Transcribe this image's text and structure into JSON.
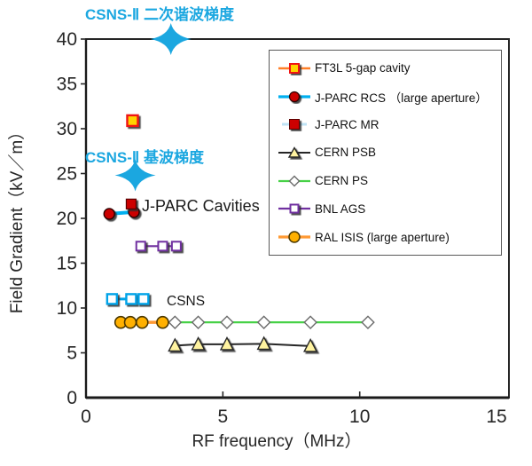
{
  "chart_data": {
    "type": "scatter",
    "title": "",
    "xlabel": "RF frequency（MHz）",
    "ylabel": "Field Gradient（kV／m）",
    "xlim": [
      0,
      15
    ],
    "ylim": [
      0,
      40
    ],
    "x_ticks": [
      0,
      5,
      10,
      15
    ],
    "y_ticks": [
      0,
      5,
      10,
      15,
      20,
      25,
      30,
      35,
      40
    ],
    "grid": false,
    "legend_position": "top-right-box",
    "series": [
      {
        "id": "ft3l",
        "name": "FT3L 5-gap cavity",
        "line_color": "#FF7F27",
        "line_width": 2.5,
        "marker": "square",
        "marker_size": 12,
        "marker_fill": "#FFD400",
        "marker_stroke": "#F01414",
        "marker_stroke_width": 2.4,
        "shadow": true,
        "in_legend": true,
        "points": [
          [
            1.7,
            30.9
          ]
        ]
      },
      {
        "id": "jparc-rcs",
        "name": "J-PARC RCS （large aperture）",
        "line_color": "#00B0F0",
        "line_width": 4,
        "marker": "circle",
        "marker_size": 12,
        "marker_fill": "#CC0000",
        "marker_stroke": "#2B0000",
        "marker_stroke_width": 1.4,
        "shadow": true,
        "in_legend": true,
        "points": [
          [
            0.85,
            20.5
          ],
          [
            1.75,
            20.7
          ]
        ]
      },
      {
        "id": "jparc-mr",
        "name": "J-PARC MR",
        "line_color": "#BFE3F5",
        "line_width": 3,
        "marker": "square",
        "marker_size": 11,
        "marker_fill": "#CC0000",
        "marker_stroke": "#5A0000",
        "marker_stroke_width": 1.2,
        "shadow": true,
        "in_legend": true,
        "single_point": true,
        "points": [
          [
            1.65,
            21.6
          ]
        ]
      },
      {
        "id": "cern-psb",
        "name": "CERN PSB",
        "line_color": "#262626",
        "line_width": 2,
        "marker": "triangle",
        "marker_size": 12,
        "marker_fill": "#FFF3A0",
        "marker_stroke": "#262626",
        "marker_stroke_width": 1.4,
        "shadow": true,
        "in_legend": true,
        "points": [
          [
            3.25,
            5.8
          ],
          [
            4.1,
            5.95
          ],
          [
            5.15,
            5.95
          ],
          [
            6.5,
            6.0
          ],
          [
            8.2,
            5.75
          ]
        ]
      },
      {
        "id": "cern-ps",
        "name": "CERN PS",
        "line_color": "#47D147",
        "line_width": 2.2,
        "marker": "diamond",
        "marker_size": 11,
        "marker_fill": "#FFFFFF",
        "marker_stroke": "#6B6B6B",
        "marker_stroke_width": 1.4,
        "shadow": false,
        "in_legend": true,
        "points": [
          [
            3.25,
            8.4
          ],
          [
            4.1,
            8.4
          ],
          [
            5.15,
            8.4
          ],
          [
            6.5,
            8.4
          ],
          [
            8.2,
            8.4
          ],
          [
            10.3,
            8.4
          ]
        ]
      },
      {
        "id": "bnl-ags",
        "name": "BNL AGS",
        "line_color": "#7030A0",
        "line_width": 2.2,
        "marker": "square",
        "marker_size": 10,
        "marker_fill": "#FFFFFF",
        "marker_stroke": "#7030A0",
        "marker_stroke_width": 2,
        "shadow": true,
        "in_legend": true,
        "points": [
          [
            2.0,
            16.9
          ],
          [
            2.8,
            16.9
          ],
          [
            3.3,
            16.9
          ]
        ]
      },
      {
        "id": "ral-isis",
        "name": "RAL ISIS (large aperture)",
        "line_color": "#FF9933",
        "line_width": 3.5,
        "marker": "circle",
        "marker_size": 13,
        "marker_fill": "#FFB000",
        "marker_stroke": "#4A3700",
        "marker_stroke_width": 1.6,
        "shadow": false,
        "in_legend": true,
        "points": [
          [
            1.27,
            8.4
          ],
          [
            1.62,
            8.4
          ],
          [
            2.05,
            8.4
          ],
          [
            2.8,
            8.4
          ]
        ]
      },
      {
        "id": "csns",
        "name": "CSNS",
        "line_color": "#00A3E8",
        "line_width": 3,
        "marker": "square",
        "marker_size": 11,
        "marker_fill": "#FFFFFF",
        "marker_stroke": "#00A3E8",
        "marker_stroke_width": 2.4,
        "shadow": true,
        "in_legend": false,
        "points": [
          [
            0.95,
            11.0
          ],
          [
            1.65,
            11.0
          ],
          [
            2.1,
            11.0
          ]
        ]
      }
    ],
    "annotations": [
      {
        "id": "csns2-second-harmonic",
        "text": "CSNS-Ⅱ 二次谐波梯度",
        "color": "#1BA7E0",
        "star_x": 3.1,
        "star_y": 40
      },
      {
        "id": "csns2-fundamental",
        "text": "CSNS-Ⅱ 基波梯度",
        "color": "#1BA7E0",
        "star_x": 1.8,
        "star_y": 24.8
      },
      {
        "id": "jparc-cavities-label",
        "text": "J-PARC Cavities",
        "color": "#1a1a1a"
      },
      {
        "id": "csns-label",
        "text": "CSNS",
        "color": "#1a1a1a"
      }
    ],
    "accent_color": "#1BA7E0"
  }
}
